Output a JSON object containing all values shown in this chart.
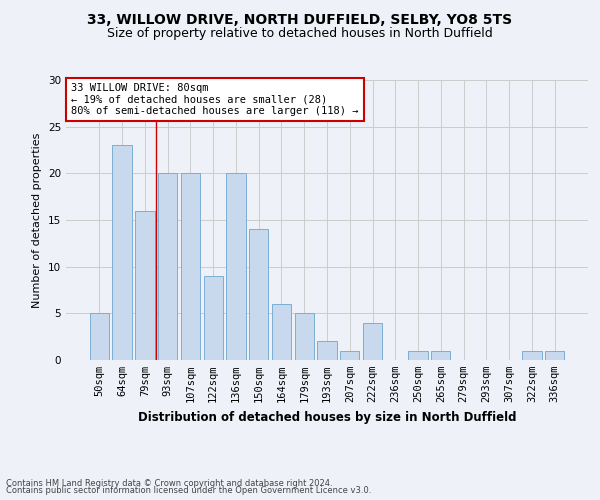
{
  "title1": "33, WILLOW DRIVE, NORTH DUFFIELD, SELBY, YO8 5TS",
  "title2": "Size of property relative to detached houses in North Duffield",
  "xlabel": "Distribution of detached houses by size in North Duffield",
  "ylabel": "Number of detached properties",
  "footnote1": "Contains HM Land Registry data © Crown copyright and database right 2024.",
  "footnote2": "Contains public sector information licensed under the Open Government Licence v3.0.",
  "categories": [
    "50sqm",
    "64sqm",
    "79sqm",
    "93sqm",
    "107sqm",
    "122sqm",
    "136sqm",
    "150sqm",
    "164sqm",
    "179sqm",
    "193sqm",
    "207sqm",
    "222sqm",
    "236sqm",
    "250sqm",
    "265sqm",
    "279sqm",
    "293sqm",
    "307sqm",
    "322sqm",
    "336sqm"
  ],
  "values": [
    5,
    23,
    16,
    20,
    20,
    9,
    20,
    14,
    6,
    5,
    2,
    1,
    4,
    0,
    1,
    1,
    0,
    0,
    0,
    1,
    1
  ],
  "bar_color": "#c8d9ed",
  "bar_edge_color": "#7bafd4",
  "grid_color": "#cccccc",
  "annotation_line1": "33 WILLOW DRIVE: 80sqm",
  "annotation_line2": "← 19% of detached houses are smaller (28)",
  "annotation_line3": "80% of semi-detached houses are larger (118) →",
  "annotation_box_color": "#ffffff",
  "annotation_box_edge_color": "#cc0000",
  "vline_color": "#cc0000",
  "vline_position": 2.5,
  "ylim": [
    0,
    30
  ],
  "yticks": [
    0,
    5,
    10,
    15,
    20,
    25,
    30
  ],
  "background_color": "#eef2f8",
  "title1_fontsize": 10,
  "title2_fontsize": 9,
  "xlabel_fontsize": 8.5,
  "ylabel_fontsize": 8,
  "tick_fontsize": 7.5,
  "annotation_fontsize": 7.5,
  "footnote_fontsize": 6
}
